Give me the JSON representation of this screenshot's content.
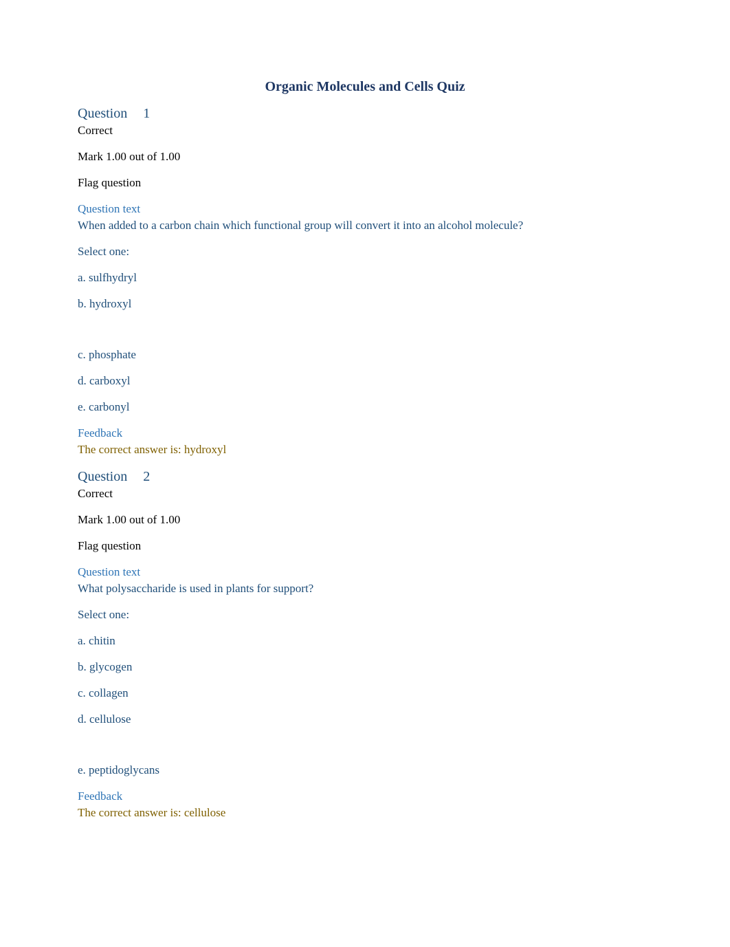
{
  "colors": {
    "title": "#1f3864",
    "heading": "#1f4e79",
    "body_text": "#000000",
    "link_blue": "#2e74b5",
    "feedback_gold": "#7f6000",
    "option_color": "#1f4e79",
    "background": "#ffffff"
  },
  "typography": {
    "title_fontsize": 20,
    "body_fontsize": 17,
    "font_family": "Georgia, Times New Roman, serif"
  },
  "title": "Organic Molecules and Cells Quiz",
  "labels": {
    "question": "Question",
    "correct": "Correct",
    "mark": "Mark 1.00 out of 1.00",
    "flag": "Flag question",
    "question_text": "Question text",
    "select_one": "Select one:",
    "feedback": "Feedback"
  },
  "questions": [
    {
      "number": "1",
      "status": "Correct",
      "mark": "Mark 1.00 out of 1.00",
      "body": "When added to a carbon chain which functional group will convert it into an alcohol molecule?",
      "options": [
        {
          "text": "a. sulfhydryl",
          "extra_space": false
        },
        {
          "text": "b. hydroxyl",
          "extra_space": false
        },
        {
          "text": "c. phosphate",
          "extra_space": true
        },
        {
          "text": "d. carboxyl",
          "extra_space": false
        },
        {
          "text": "e. carbonyl",
          "extra_space": false
        }
      ],
      "feedback": "The correct answer is: hydroxyl"
    },
    {
      "number": "2",
      "status": "Correct",
      "mark": "Mark 1.00 out of 1.00",
      "body": "What polysaccharide is used in plants for support?",
      "options": [
        {
          "text": "a. chitin",
          "extra_space": false
        },
        {
          "text": "b. glycogen",
          "extra_space": false
        },
        {
          "text": "c. collagen",
          "extra_space": false
        },
        {
          "text": "d. cellulose",
          "extra_space": false
        },
        {
          "text": "e. peptidoglycans",
          "extra_space": true
        }
      ],
      "feedback": "The correct answer is: cellulose"
    }
  ]
}
